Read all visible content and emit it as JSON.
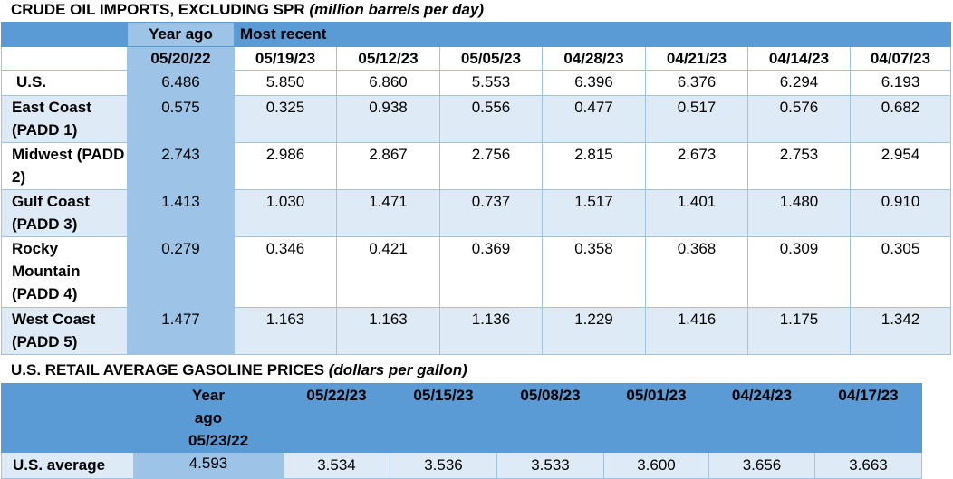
{
  "crude": {
    "title": "CRUDE OIL IMPORTS, EXCLUDING SPR",
    "subtitle": "(million barrels per day)",
    "header_year_ago": "Year ago",
    "header_most_recent": "Most recent",
    "dates": [
      "05/20/22",
      "05/19/23",
      "05/12/23",
      "05/05/23",
      "04/28/23",
      "04/21/23",
      "04/14/23",
      "04/07/23"
    ],
    "rows": [
      {
        "label": "U.S.",
        "values": [
          "6.486",
          "5.850",
          "6.860",
          "5.553",
          "6.396",
          "6.376",
          "6.294",
          "6.193"
        ]
      },
      {
        "label": "East Coast (PADD 1)",
        "values": [
          "0.575",
          "0.325",
          "0.938",
          "0.556",
          "0.477",
          "0.517",
          "0.576",
          "0.682"
        ]
      },
      {
        "label": "Midwest (PADD 2)",
        "values": [
          "2.743",
          "2.986",
          "2.867",
          "2.756",
          "2.815",
          "2.673",
          "2.753",
          "2.954"
        ]
      },
      {
        "label": "Gulf Coast (PADD 3)",
        "values": [
          "1.413",
          "1.030",
          "1.471",
          "0.737",
          "1.517",
          "1.401",
          "1.480",
          "0.910"
        ]
      },
      {
        "label": "Rocky Mountain (PADD 4)",
        "values": [
          "0.279",
          "0.346",
          "0.421",
          "0.369",
          "0.358",
          "0.368",
          "0.309",
          "0.305"
        ]
      },
      {
        "label": "West Coast (PADD 5)",
        "values": [
          "1.477",
          "1.163",
          "1.163",
          "1.136",
          "1.229",
          "1.416",
          "1.175",
          "1.342"
        ]
      }
    ]
  },
  "gasoline": {
    "title": "U.S. RETAIL AVERAGE GASOLINE PRICES",
    "subtitle": "(dollars per gallon)",
    "header_year_ago": "Year ago 05/23/22",
    "dates": [
      "05/22/23",
      "05/15/23",
      "05/08/23",
      "05/01/23",
      "04/24/23",
      "04/17/23"
    ],
    "row_label": "U.S. average",
    "year_ago_value": "4.593",
    "values": [
      "3.534",
      "3.536",
      "3.533",
      "3.600",
      "3.656",
      "3.663"
    ]
  }
}
